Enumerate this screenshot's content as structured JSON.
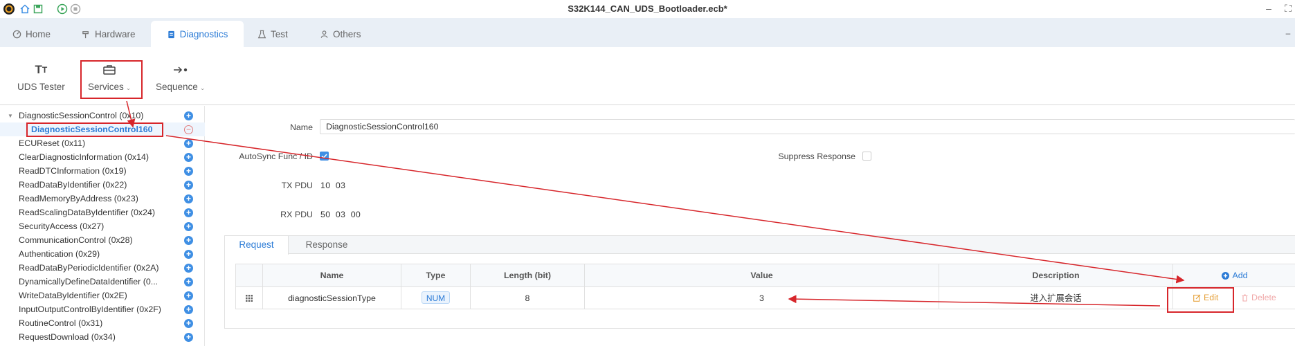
{
  "window": {
    "title": "S32K144_CAN_UDS_Bootloader.ecb*"
  },
  "tabs": [
    {
      "label": "Home",
      "icon": "home-icon"
    },
    {
      "label": "Hardware",
      "icon": "hammer-icon"
    },
    {
      "label": "Diagnostics",
      "icon": "clipboard-icon",
      "active": true
    },
    {
      "label": "Test",
      "icon": "flask-icon"
    },
    {
      "label": "Others",
      "icon": "person-icon"
    }
  ],
  "ribbon": {
    "uds_tester": "UDS Tester",
    "services": "Services",
    "sequence": "Sequence"
  },
  "tree": {
    "items": [
      {
        "label": "DiagnosticSessionControl (0x10)"
      },
      {
        "label": "DiagnosticSessionControl160"
      },
      {
        "label": "ECUReset (0x11)"
      },
      {
        "label": "ClearDiagnosticInformation (0x14)"
      },
      {
        "label": "ReadDTCInformation (0x19)"
      },
      {
        "label": "ReadDataByIdentifier (0x22)"
      },
      {
        "label": "ReadMemoryByAddress (0x23)"
      },
      {
        "label": "ReadScalingDataByIdentifier (0x24)"
      },
      {
        "label": "SecurityAccess (0x27)"
      },
      {
        "label": "CommunicationControl (0x28)"
      },
      {
        "label": "Authentication (0x29)"
      },
      {
        "label": "ReadDataByPeriodicIdentifier (0x2A)"
      },
      {
        "label": "DynamicallyDefineDataIdentifier (0..."
      },
      {
        "label": "WriteDataByIdentifier (0x2E)"
      },
      {
        "label": "InputOutputControlByIdentifier (0x2F)"
      },
      {
        "label": "RoutineControl (0x31)"
      },
      {
        "label": "RequestDownload (0x34)"
      }
    ]
  },
  "form": {
    "name_label": "Name",
    "name_value": "DiagnosticSessionControl160",
    "autosync_label": "AutoSync Func / ID",
    "autosync_checked": true,
    "suppress_label": "Suppress Response",
    "suppress_checked": false,
    "tx_label": "TX PDU",
    "tx_value": "10  03",
    "rx_label": "RX PDU",
    "rx_value": "50  03  00"
  },
  "inner_tabs": {
    "request": "Request",
    "response": "Response"
  },
  "table": {
    "columns": {
      "name": "Name",
      "type": "Type",
      "length": "Length (bit)",
      "value": "Value",
      "description": "Description"
    },
    "add_label": "Add",
    "rows": [
      {
        "name": "diagnosticSessionType",
        "type": "NUM",
        "length": "8",
        "value": "3",
        "description": "进入扩展会话",
        "edit_label": "Edit",
        "delete_label": "Delete"
      }
    ]
  },
  "colors": {
    "accent": "#2b7bd6",
    "annotation": "#d7262b",
    "edit": "#e6a23c",
    "delete": "#f0a8a8"
  }
}
